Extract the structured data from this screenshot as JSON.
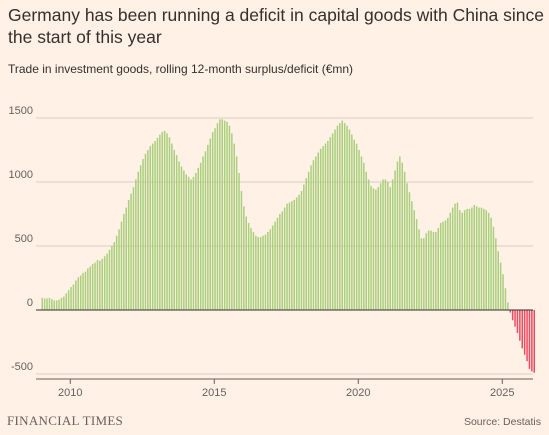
{
  "header": {
    "title": "Germany has been running a deficit in capital goods with China since the start of this year",
    "subtitle": "Trade in investment goods, rolling 12-month surplus/deficit (€mn)"
  },
  "footer": {
    "brand": "FINANCIAL TIMES",
    "source": "Source: Destatis"
  },
  "colors": {
    "positive": "#A9CF7C",
    "negative": "#EC4A61",
    "grid": "#D9CCC1",
    "zero_line": "#33302E",
    "background": "#FFF1E5"
  },
  "chart_data": {
    "type": "bar",
    "title": "",
    "xlabel": "",
    "ylabel": "",
    "x_start": "2009-01",
    "frequency": "monthly",
    "ylim": [
      -500,
      1500
    ],
    "y_ticks": [
      -500,
      0,
      500,
      1000,
      1500
    ],
    "x_ticks": [
      "2010",
      "2015",
      "2020",
      "2025"
    ],
    "grid": true,
    "legend": "none",
    "values": [
      95,
      90,
      90,
      95,
      85,
      75,
      75,
      80,
      95,
      105,
      130,
      155,
      180,
      200,
      230,
      255,
      270,
      290,
      300,
      325,
      340,
      360,
      370,
      390,
      385,
      400,
      420,
      440,
      470,
      500,
      530,
      580,
      630,
      690,
      750,
      800,
      860,
      910,
      960,
      1020,
      1080,
      1130,
      1180,
      1220,
      1250,
      1280,
      1300,
      1320,
      1345,
      1370,
      1390,
      1400,
      1380,
      1350,
      1300,
      1250,
      1210,
      1160,
      1120,
      1090,
      1060,
      1040,
      1020,
      1040,
      1070,
      1110,
      1150,
      1200,
      1240,
      1290,
      1340,
      1390,
      1420,
      1460,
      1490,
      1490,
      1480,
      1470,
      1440,
      1380,
      1300,
      1200,
      1070,
      930,
      810,
      730,
      680,
      640,
      610,
      580,
      570,
      570,
      580,
      590,
      610,
      630,
      660,
      690,
      720,
      750,
      770,
      800,
      830,
      840,
      850,
      860,
      880,
      900,
      930,
      980,
      1030,
      1080,
      1130,
      1170,
      1200,
      1230,
      1260,
      1280,
      1300,
      1320,
      1350,
      1380,
      1410,
      1440,
      1460,
      1480,
      1460,
      1440,
      1410,
      1370,
      1330,
      1300,
      1250,
      1200,
      1150,
      1080,
      1020,
      970,
      950,
      940,
      960,
      990,
      1020,
      1020,
      1000,
      960,
      1020,
      1090,
      1160,
      1200,
      1150,
      1080,
      990,
      920,
      850,
      780,
      710,
      630,
      560,
      560,
      600,
      620,
      620,
      610,
      610,
      640,
      680,
      690,
      700,
      720,
      760,
      800,
      830,
      840,
      780,
      760,
      780,
      790,
      790,
      800,
      820,
      810,
      800,
      800,
      790,
      780,
      760,
      720,
      650,
      560,
      460,
      370,
      280,
      170,
      60,
      -20,
      -80,
      -130,
      -180,
      -240,
      -300,
      -350,
      -400,
      -460,
      -480,
      -490
    ]
  }
}
